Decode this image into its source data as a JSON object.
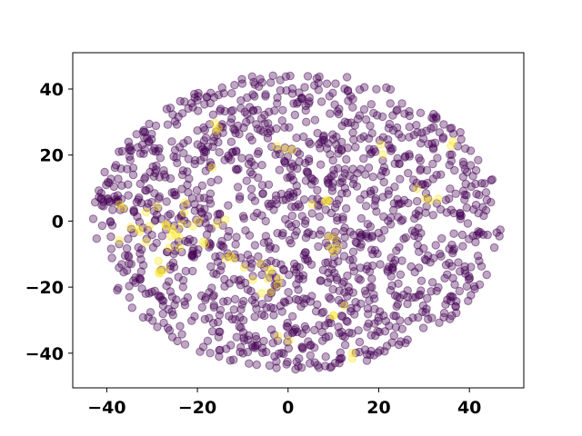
{
  "chart_data": {
    "type": "scatter",
    "title": "",
    "xlabel": "",
    "ylabel": "",
    "xlim": [
      -47.5,
      52
    ],
    "ylim": [
      -50.5,
      51
    ],
    "xticks": [
      -40,
      -20,
      0,
      20,
      40
    ],
    "yticks": [
      -40,
      -20,
      0,
      20,
      40
    ],
    "xtick_labels": [
      "−40",
      "−20",
      "0",
      "20",
      "40"
    ],
    "ytick_labels": [
      "−40",
      "−20",
      "0",
      "20",
      "40"
    ],
    "grid": false,
    "legend": "none",
    "marker": "circle",
    "point_alpha": 0.35,
    "colors": {
      "class_0": "#440154",
      "class_1": "#fde725"
    },
    "point_count_estimate": 1500,
    "shape": "elliptical cloud centered near (2, 0), x span about -43 to 48, y span about -46 to 47",
    "series": [
      {
        "class": 0,
        "color": "#440154",
        "clusters": [
          {
            "cx": 2,
            "cy": 0,
            "sx": 20,
            "sy": 18,
            "n": 1400
          }
        ]
      },
      {
        "class": 1,
        "color": "#fde725",
        "clusters": [
          {
            "cx": -25,
            "cy": -1,
            "sx": 5,
            "sy": 5,
            "n": 28
          },
          {
            "cx": -4,
            "cy": -18,
            "sx": 2.5,
            "sy": 3,
            "n": 10
          },
          {
            "cx": 8,
            "cy": 5,
            "sx": 1.5,
            "sy": 1.5,
            "n": 4
          },
          {
            "cx": 9,
            "cy": -7,
            "sx": 1.5,
            "sy": 1.5,
            "n": 5
          },
          {
            "cx": -16,
            "cy": 29,
            "sx": 1,
            "sy": 1,
            "n": 3
          },
          {
            "cx": 0,
            "cy": 22,
            "sx": 1.5,
            "sy": 1,
            "n": 3
          },
          {
            "cx": 31,
            "cy": 8,
            "sx": 2,
            "sy": 2,
            "n": 4
          },
          {
            "cx": -28,
            "cy": -14,
            "sx": 2,
            "sy": 1.5,
            "n": 4
          },
          {
            "cx": 36,
            "cy": 24,
            "sx": 1,
            "sy": 1,
            "n": 2
          },
          {
            "cx": -14,
            "cy": -12,
            "sx": 1.5,
            "sy": 1.5,
            "n": 3
          },
          {
            "cx": 16,
            "cy": -40,
            "sx": 1,
            "sy": 1,
            "n": 2
          },
          {
            "cx": -2,
            "cy": -36,
            "sx": 1,
            "sy": 1,
            "n": 2
          },
          {
            "cx": 12,
            "cy": -28,
            "sx": 1.5,
            "sy": 1.5,
            "n": 3
          },
          {
            "cx": -37,
            "cy": 5,
            "sx": 1,
            "sy": 1,
            "n": 2
          },
          {
            "cx": 20,
            "cy": 22,
            "sx": 1,
            "sy": 1,
            "n": 2
          }
        ]
      }
    ]
  }
}
